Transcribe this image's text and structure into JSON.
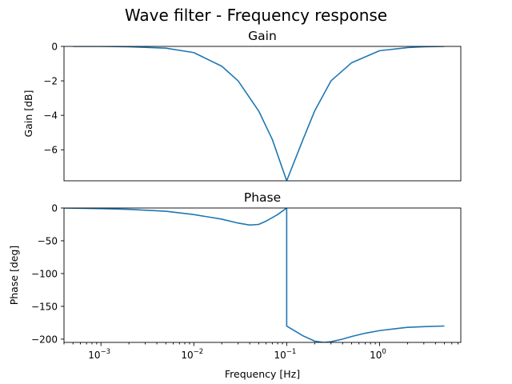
{
  "figure": {
    "title": "Wave filter - Frequency response"
  },
  "chart_data": [
    {
      "type": "line",
      "title": "Gain",
      "xlabel": "",
      "ylabel": "Gain [dB]",
      "xscale": "log",
      "xlim": [
        0.0004,
        7.5
      ],
      "ylim": [
        -7.8,
        0
      ],
      "yticks": [
        0,
        -2,
        -4,
        -6
      ],
      "ytick_labels": [
        "0",
        "−2",
        "−4",
        "−6"
      ],
      "show_xticks": false,
      "grid": false,
      "series": [
        {
          "color": "#1f77b4",
          "x": [
            0.0005,
            0.001,
            0.002,
            0.005,
            0.01,
            0.02,
            0.03,
            0.05,
            0.07,
            0.1,
            0.15,
            0.2,
            0.3,
            0.5,
            1,
            2,
            3,
            5
          ],
          "y": [
            0,
            0,
            -0.02,
            -0.1,
            -0.36,
            -1.15,
            -2.0,
            -3.75,
            -5.4,
            -7.8,
            -5.4,
            -3.75,
            -2.0,
            -0.95,
            -0.25,
            -0.07,
            -0.02,
            0
          ]
        }
      ]
    },
    {
      "type": "line",
      "title": "Phase",
      "xlabel": "Frequency [Hz]",
      "ylabel": "Phase [deg]",
      "xscale": "log",
      "xlim": [
        0.0004,
        7.5
      ],
      "ylim": [
        -205,
        0
      ],
      "yticks": [
        0,
        -50,
        -100,
        -150,
        -200
      ],
      "ytick_labels": [
        "0",
        "−50",
        "−100",
        "−150",
        "−200"
      ],
      "xticks": [
        0.001,
        0.01,
        0.1,
        1
      ],
      "xtick_labels": [
        [
          "10",
          "−3"
        ],
        [
          "10",
          "−2"
        ],
        [
          "10",
          "−1"
        ],
        [
          "10",
          "0"
        ]
      ],
      "grid": false,
      "series": [
        {
          "color": "#1f77b4",
          "x": [
            0.0004,
            0.001,
            0.002,
            0.005,
            0.01,
            0.02,
            0.03,
            0.04,
            0.05,
            0.06,
            0.08,
            0.1,
            0.1,
            0.15,
            0.2,
            0.25,
            0.3,
            0.4,
            0.5,
            0.7,
            1,
            1.5,
            2,
            3,
            5
          ],
          "y": [
            0,
            -1,
            -2,
            -5,
            -10,
            -17,
            -23,
            -26,
            -25,
            -20,
            -10,
            0,
            -180,
            -195,
            -203,
            -205,
            -204,
            -200,
            -196,
            -191,
            -187,
            -184,
            -182,
            -181,
            -180
          ]
        }
      ]
    }
  ]
}
